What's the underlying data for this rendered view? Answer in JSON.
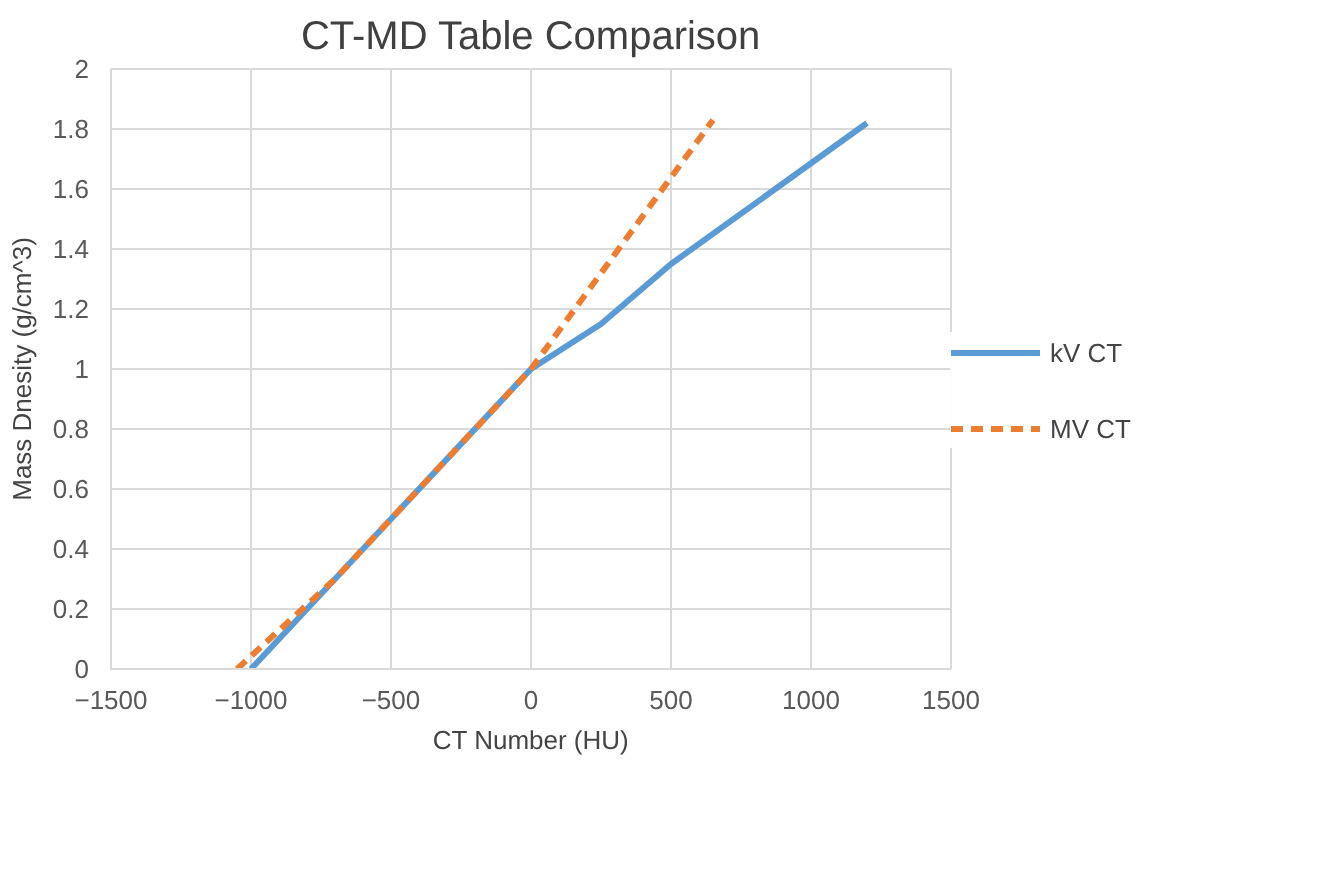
{
  "chart_data": {
    "type": "line",
    "title": "CT-MD Table Comparison",
    "xlabel": "CT Number (HU)",
    "ylabel": "Mass Dnesity (g/cm^3)",
    "xlim": [
      -1500,
      1500
    ],
    "xticks": [
      -1500,
      -1000,
      -500,
      0,
      500,
      1000,
      1500
    ],
    "ylim": [
      0,
      2
    ],
    "yticks": [
      0,
      0.2,
      0.4,
      0.6,
      0.8,
      1,
      1.2,
      1.4,
      1.6,
      1.8,
      2
    ],
    "grid": true,
    "legend": "right",
    "marker": "none",
    "series": [
      {
        "name": "kV CT",
        "color": "#5b9bd5",
        "line_style": "solid",
        "x": [
          -1000,
          -700,
          -500,
          0,
          250,
          500,
          1200
        ],
        "values": [
          0,
          0.3,
          0.5,
          1.0,
          1.15,
          1.35,
          1.82
        ]
      },
      {
        "name": "MV CT",
        "color": "#ed7d31",
        "line_style": "dashed",
        "x": [
          -1050,
          -700,
          -500,
          0,
          650
        ],
        "values": [
          0,
          0.3,
          0.5,
          1.0,
          1.83
        ]
      }
    ]
  }
}
